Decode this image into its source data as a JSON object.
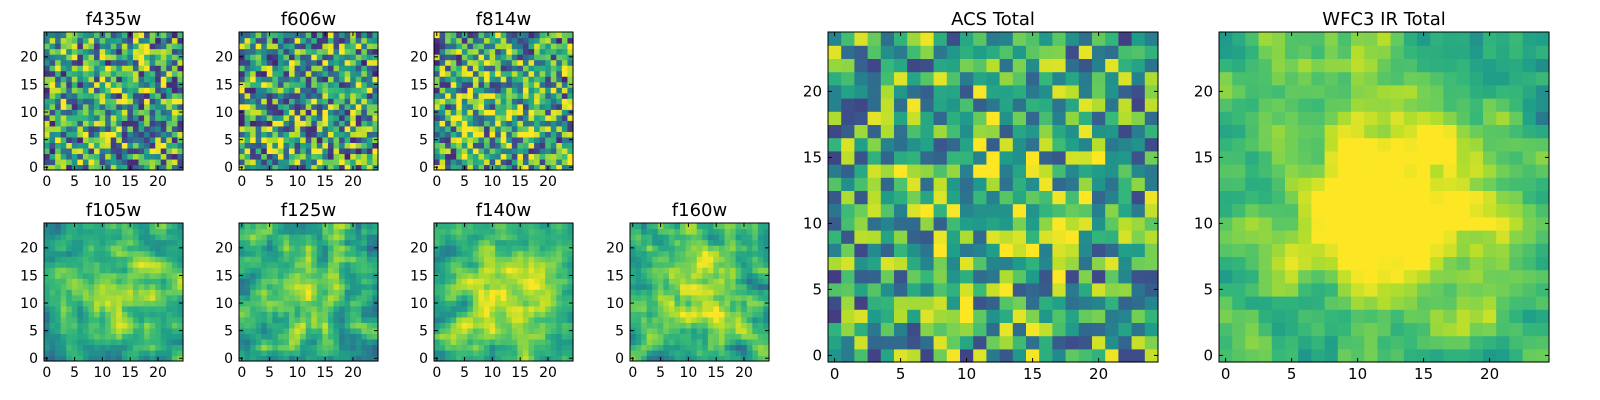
{
  "chart_data": [
    {
      "type": "heatmap",
      "title": "f435w",
      "xticks": [
        "0",
        "5",
        "10",
        "15",
        "20"
      ],
      "yticks": [
        "0",
        "5",
        "10",
        "15",
        "20"
      ],
      "xlim": [
        -0.5,
        24.5
      ],
      "ylim": [
        -0.5,
        24.5
      ],
      "grid_size": 25,
      "colormap": "viridis",
      "pattern": "noise",
      "noise": 1.0,
      "center": 0.05
    },
    {
      "type": "heatmap",
      "title": "f606w",
      "xticks": [
        "0",
        "5",
        "10",
        "15",
        "20"
      ],
      "yticks": [
        "0",
        "5",
        "10",
        "15",
        "20"
      ],
      "xlim": [
        -0.5,
        24.5
      ],
      "ylim": [
        -0.5,
        24.5
      ],
      "grid_size": 25,
      "colormap": "viridis",
      "pattern": "noise",
      "noise": 1.0,
      "center": 0.05
    },
    {
      "type": "heatmap",
      "title": "f814w",
      "xticks": [
        "0",
        "5",
        "10",
        "15",
        "20"
      ],
      "yticks": [
        "0",
        "5",
        "10",
        "15",
        "20"
      ],
      "xlim": [
        -0.5,
        24.5
      ],
      "ylim": [
        -0.5,
        24.5
      ],
      "grid_size": 25,
      "colormap": "viridis",
      "pattern": "noise",
      "noise": 1.0,
      "center": 0.12
    },
    {
      "type": "heatmap",
      "title": "f105w",
      "xticks": [
        "0",
        "5",
        "10",
        "15",
        "20"
      ],
      "yticks": [
        "0",
        "5",
        "10",
        "15",
        "20"
      ],
      "xlim": [
        -0.5,
        24.5
      ],
      "ylim": [
        -0.5,
        24.5
      ],
      "grid_size": 25,
      "colormap": "viridis",
      "pattern": "smooth",
      "noise": 0.6,
      "center": 0.35
    },
    {
      "type": "heatmap",
      "title": "f125w",
      "xticks": [
        "0",
        "5",
        "10",
        "15",
        "20"
      ],
      "yticks": [
        "0",
        "5",
        "10",
        "15",
        "20"
      ],
      "xlim": [
        -0.5,
        24.5
      ],
      "ylim": [
        -0.5,
        24.5
      ],
      "grid_size": 25,
      "colormap": "viridis",
      "pattern": "smooth",
      "noise": 0.6,
      "center": 0.3
    },
    {
      "type": "heatmap",
      "title": "f140w",
      "xticks": [
        "0",
        "5",
        "10",
        "15",
        "20"
      ],
      "yticks": [
        "0",
        "5",
        "10",
        "15",
        "20"
      ],
      "xlim": [
        -0.5,
        24.5
      ],
      "ylim": [
        -0.5,
        24.5
      ],
      "grid_size": 25,
      "colormap": "viridis",
      "pattern": "smooth",
      "noise": 0.6,
      "center": 0.35
    },
    {
      "type": "heatmap",
      "title": "f160w",
      "xticks": [
        "0",
        "5",
        "10",
        "15",
        "20"
      ],
      "yticks": [
        "0",
        "5",
        "10",
        "15",
        "20"
      ],
      "xlim": [
        -0.5,
        24.5
      ],
      "ylim": [
        -0.5,
        24.5
      ],
      "grid_size": 25,
      "colormap": "viridis",
      "pattern": "smooth",
      "noise": 0.65,
      "center": 0.3
    },
    {
      "type": "heatmap",
      "title": "ACS Total",
      "xticks": [
        "0",
        "5",
        "10",
        "15",
        "20"
      ],
      "yticks": [
        "0",
        "5",
        "10",
        "15",
        "20"
      ],
      "xlim": [
        -0.5,
        24.5
      ],
      "ylim": [
        -0.5,
        24.5
      ],
      "grid_size": 25,
      "colormap": "viridis",
      "pattern": "noise",
      "noise": 0.85,
      "center": 0.15
    },
    {
      "type": "heatmap",
      "title": "WFC3 IR Total",
      "xticks": [
        "0",
        "5",
        "10",
        "15",
        "20"
      ],
      "yticks": [
        "0",
        "5",
        "10",
        "15",
        "20"
      ],
      "xlim": [
        -0.5,
        24.5
      ],
      "ylim": [
        -0.5,
        24.5
      ],
      "grid_size": 25,
      "colormap": "viridis",
      "pattern": "smooth",
      "noise": 0.5,
      "center": 0.55
    }
  ]
}
